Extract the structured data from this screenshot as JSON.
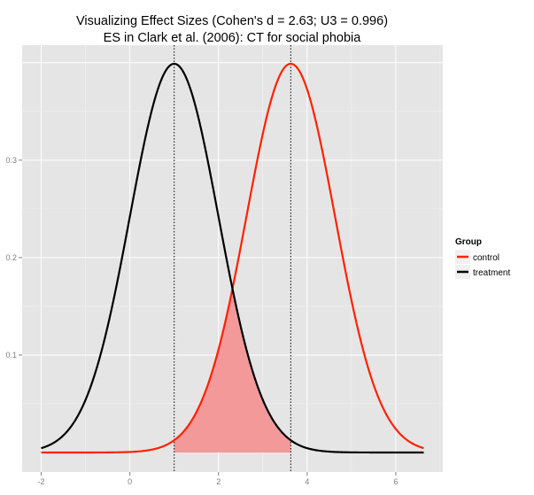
{
  "chart_data": {
    "type": "line",
    "title": "Visualizing Effect Sizes (Cohen's d = 2.63; U3 = 0.996)",
    "subtitle": "ES in Clark et al. (2006): CT for social phobia",
    "xlabel": "",
    "ylabel": "",
    "xlim": [
      -2.43,
      7.06
    ],
    "ylim": [
      -0.02,
      0.418
    ],
    "x_range": [
      -2,
      6.63
    ],
    "x_ticks": [
      -2,
      0,
      2,
      4,
      6
    ],
    "x_tick_labels": [
      "-2",
      "0",
      "2",
      "4",
      "6"
    ],
    "y_ticks": [
      0.1,
      0.2,
      0.3
    ],
    "y_tick_labels": [
      "0.1",
      "0.2",
      "0.3"
    ],
    "grid": true,
    "legend": {
      "title": "Group",
      "placement": "right"
    },
    "series": [
      {
        "name": "control",
        "distribution": "normal",
        "mean": 3.63,
        "sd": 1,
        "color": "#ff2200"
      },
      {
        "name": "treatment",
        "distribution": "normal",
        "mean": 1,
        "sd": 1,
        "color": "#000000"
      }
    ],
    "shaded_overlap": {
      "from": 1,
      "to": 3.63,
      "color": "#f4999a"
    },
    "vlines": [
      1,
      3.63
    ]
  }
}
